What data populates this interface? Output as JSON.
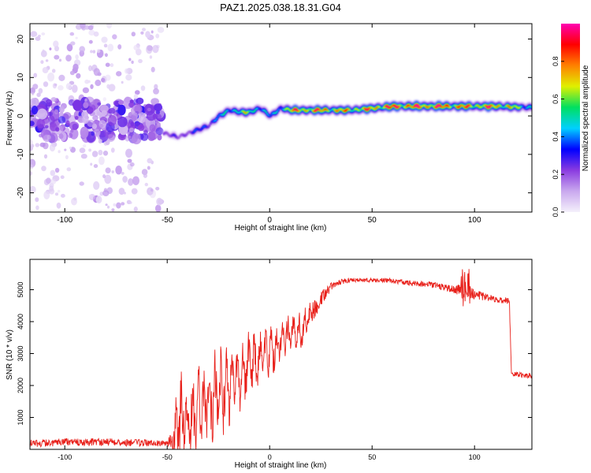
{
  "title": "PAZ1.2025.038.18.31.G04",
  "colors": {
    "background": "#ffffff",
    "snr_line": "#e8201a",
    "frame": "#000000"
  },
  "chart_data": [
    {
      "type": "heatmap",
      "xlabel": "Height of straight line (km)",
      "ylabel": "Frequency (Hz)",
      "xlim": [
        -117,
        128
      ],
      "ylim": [
        -25,
        24
      ],
      "xticks": [
        -100,
        -50,
        0,
        50,
        100
      ],
      "yticks": [
        -20,
        -10,
        0,
        10,
        20
      ],
      "colorbar": {
        "label": "Normalized spectral amplitude",
        "range": [
          0,
          1
        ],
        "ticks": [
          "0.0",
          "0.2",
          "0.4",
          "0.6",
          "0.8"
        ],
        "colormap": [
          "#f4f0fb",
          "#c9a8ee",
          "#8a3be0",
          "#0000ff",
          "#00d0ff",
          "#00e060",
          "#e0f000",
          "#ff8000",
          "#ff0000",
          "#ff00b0"
        ]
      },
      "ridge": {
        "x": [
          -52,
          -45,
          -40,
          -30,
          -25,
          -20,
          -15,
          -10,
          -5,
          0,
          5,
          10,
          20,
          40,
          60,
          80,
          100,
          110,
          128
        ],
        "freq": [
          -4.5,
          -5.5,
          -4.5,
          -2.5,
          0,
          1.5,
          1,
          1,
          2,
          0,
          2,
          1.5,
          1.5,
          1.5,
          2.5,
          2.5,
          2.5,
          2.5,
          2.2
        ],
        "amplitude": [
          0.25,
          0.25,
          0.3,
          0.4,
          0.45,
          0.5,
          0.65,
          0.6,
          0.55,
          0.4,
          0.55,
          0.8,
          0.85,
          0.75,
          0.9,
          0.9,
          0.8,
          0.85,
          0.5
        ]
      },
      "noise_region": {
        "x": [
          -117,
          -53
        ],
        "freq": [
          -25,
          24
        ],
        "amplitude": [
          0,
          0.3
        ]
      }
    },
    {
      "type": "line",
      "xlabel": "Height of straight line (km)",
      "ylabel": "SNR (10 * v/v)",
      "xlim": [
        -117,
        128
      ],
      "ylim": [
        0,
        5950
      ],
      "xticks": [
        -100,
        -50,
        0,
        50,
        100
      ],
      "yticks": [
        1000,
        2000,
        3000,
        4000,
        5000
      ],
      "series": [
        {
          "x": [
            -117,
            -100,
            -80,
            -60,
            -50,
            -47,
            -44,
            -40,
            -35,
            -30,
            -25,
            -20,
            -15,
            -10,
            -5,
            0,
            5,
            10,
            15,
            20,
            25,
            30,
            35,
            40,
            50,
            60,
            70,
            80,
            90,
            95,
            100,
            110,
            117,
            118,
            120,
            128
          ],
          "values": [
            180,
            220,
            230,
            200,
            190,
            400,
            1100,
            900,
            1300,
            1500,
            1800,
            2000,
            2300,
            2700,
            2900,
            3100,
            3400,
            3700,
            3700,
            4200,
            4700,
            5100,
            5250,
            5300,
            5300,
            5280,
            5200,
            5150,
            5000,
            4950,
            4850,
            4700,
            4650,
            2350,
            2350,
            2300
          ],
          "noise_amplitude": [
            120,
            120,
            120,
            110,
            100,
            500,
            1600,
            1200,
            1500,
            1300,
            1200,
            1100,
            1000,
            900,
            850,
            700,
            600,
            550,
            550,
            400,
            250,
            120,
            80,
            70,
            70,
            80,
            80,
            90,
            120,
            300,
            150,
            100,
            100,
            80,
            80,
            80
          ]
        }
      ]
    }
  ]
}
